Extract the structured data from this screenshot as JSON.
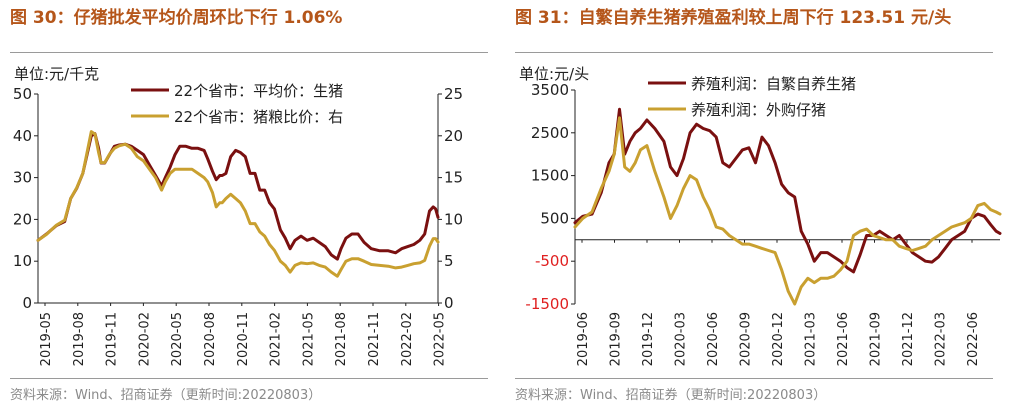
{
  "left": {
    "title": "图 30：仔猪批发平均价周环比下行 1.06%",
    "source": "资料来源：Wind、招商证券（更新时间:20220803）"
  },
  "right": {
    "title": "图 31：自繁自养生猪养殖盈利较上周下行 123.51 元/头",
    "source": "资料来源：Wind、招商证券（更新时间:20220803）"
  },
  "colors": {
    "dark": "#7a1010",
    "gold": "#c9a030",
    "neg": "#e02020"
  },
  "chart_data": [
    {
      "type": "line",
      "title": "图 30：仔猪批发平均价周环比下行 1.06%",
      "ylabel": "单位:元/千克",
      "ylim": [
        0,
        50
      ],
      "y_ticks": [
        "0",
        "10",
        "20",
        "30",
        "40",
        "50"
      ],
      "y2lim": [
        0,
        25
      ],
      "y2_ticks": [
        "0",
        "5",
        "10",
        "15",
        "20",
        "25"
      ],
      "xlim": [
        2019.33,
        2022.63
      ],
      "x_tick_labels": [
        "2019-05",
        "2019-08",
        "2019-11",
        "2020-02",
        "2020-05",
        "2020-08",
        "2020-11",
        "2021-02",
        "2021-05",
        "2021-08",
        "2021-11",
        "2022-02",
        "2022-05"
      ],
      "series": [
        {
          "name": "22个省市：平均价：生猪",
          "axis": "left",
          "x": [
            2019.33,
            2019.4,
            2019.48,
            2019.55,
            2019.6,
            2019.65,
            2019.7,
            2019.77,
            2019.8,
            2019.83,
            2019.85,
            2019.88,
            2019.92,
            2019.96,
            2020.0,
            2020.05,
            2020.1,
            2020.15,
            2020.2,
            2020.25,
            2020.3,
            2020.35,
            2020.38,
            2020.42,
            2020.46,
            2020.5,
            2020.55,
            2020.6,
            2020.65,
            2020.7,
            2020.73,
            2020.77,
            2020.8,
            2020.83,
            2020.85,
            2020.88,
            2020.92,
            2020.96,
            2021.0,
            2021.04,
            2021.08,
            2021.12,
            2021.16,
            2021.2,
            2021.24,
            2021.28,
            2021.33,
            2021.37,
            2021.41,
            2021.45,
            2021.5,
            2021.55,
            2021.6,
            2021.65,
            2021.7,
            2021.75,
            2021.8,
            2021.83,
            2021.87,
            2021.92,
            2021.97,
            2022.02,
            2022.08,
            2022.15,
            2022.22,
            2022.28,
            2022.33,
            2022.38,
            2022.43,
            2022.48,
            2022.52,
            2022.56,
            2022.59,
            2022.61,
            2022.63
          ],
          "values": [
            15,
            16.5,
            18.5,
            19.5,
            25,
            27.5,
            31,
            40,
            40.5,
            37,
            33.5,
            33.5,
            35.5,
            37.5,
            37.8,
            38,
            37.5,
            36.5,
            35.5,
            33,
            30.5,
            28,
            30,
            32.5,
            35.5,
            37.5,
            37.5,
            37,
            37,
            36.5,
            34.5,
            31.5,
            29.5,
            30.5,
            30.5,
            31,
            35,
            36.5,
            36,
            35,
            31,
            31,
            27,
            27,
            24,
            22.5,
            17.5,
            15.5,
            13,
            15,
            16,
            15,
            15.5,
            14.5,
            13.5,
            11.5,
            10.5,
            13,
            15.5,
            16.5,
            16.5,
            14.5,
            13,
            12.5,
            12.5,
            12,
            13,
            13.5,
            14,
            15,
            16.5,
            22,
            23,
            22.5,
            20.5
          ]
        },
        {
          "name": "22个省市：猪粮比价：右",
          "axis": "right",
          "x": [
            2019.33,
            2019.4,
            2019.48,
            2019.55,
            2019.6,
            2019.65,
            2019.7,
            2019.77,
            2019.8,
            2019.83,
            2019.85,
            2019.88,
            2019.92,
            2019.96,
            2020.0,
            2020.05,
            2020.1,
            2020.15,
            2020.2,
            2020.25,
            2020.3,
            2020.35,
            2020.38,
            2020.42,
            2020.46,
            2020.5,
            2020.55,
            2020.6,
            2020.65,
            2020.7,
            2020.73,
            2020.77,
            2020.8,
            2020.83,
            2020.85,
            2020.88,
            2020.92,
            2020.96,
            2021.0,
            2021.04,
            2021.08,
            2021.12,
            2021.16,
            2021.2,
            2021.24,
            2021.28,
            2021.33,
            2021.37,
            2021.41,
            2021.45,
            2021.5,
            2021.55,
            2021.6,
            2021.65,
            2021.7,
            2021.75,
            2021.8,
            2021.83,
            2021.87,
            2021.92,
            2021.97,
            2022.02,
            2022.08,
            2022.15,
            2022.22,
            2022.28,
            2022.33,
            2022.38,
            2022.43,
            2022.48,
            2022.52,
            2022.56,
            2022.59,
            2022.61,
            2022.63
          ],
          "values": [
            7.5,
            8.2,
            9.3,
            9.9,
            12.5,
            13.8,
            15.5,
            20.5,
            20.2,
            18,
            16.8,
            16.8,
            17.8,
            18.5,
            18.8,
            19,
            18.5,
            17.5,
            17,
            16,
            15,
            13.5,
            14.5,
            15.5,
            16,
            16,
            16,
            16,
            15.5,
            15,
            14.5,
            13.2,
            11.5,
            12,
            12,
            12.5,
            13,
            12.5,
            12,
            11,
            9.5,
            9.5,
            8.5,
            8,
            7,
            6.3,
            5,
            4.5,
            3.7,
            4.5,
            4.8,
            4.7,
            4.8,
            4.5,
            4.3,
            3.7,
            3.2,
            4,
            5,
            5.3,
            5.3,
            5,
            4.6,
            4.5,
            4.4,
            4.2,
            4.3,
            4.5,
            4.7,
            4.8,
            5.1,
            6.8,
            7.7,
            7.7,
            7.3
          ]
        }
      ]
    },
    {
      "type": "line",
      "title": "图 31：自繁自养生猪养殖盈利较上周下行 123.51 元/头",
      "ylabel": "单位:元/头",
      "ylim": [
        -1500,
        3500
      ],
      "y_ticks": [
        "-1500",
        "-500",
        "500",
        "1500",
        "2500",
        "3500"
      ],
      "baseline": 0,
      "xlim": [
        2019.42,
        2022.67
      ],
      "x_tick_labels": [
        "2019-06",
        "2019-09",
        "2019-12",
        "2020-03",
        "2020-06",
        "2020-09",
        "2020-12",
        "2021-03",
        "2021-06",
        "2021-09",
        "2021-12",
        "2022-03",
        "2022-06"
      ],
      "series": [
        {
          "name": "养殖利润：自繁自养生猪",
          "x": [
            2019.42,
            2019.48,
            2019.55,
            2019.62,
            2019.68,
            2019.72,
            2019.76,
            2019.8,
            2019.84,
            2019.88,
            2019.92,
            2019.97,
            2020.03,
            2020.1,
            2020.15,
            2020.2,
            2020.25,
            2020.3,
            2020.35,
            2020.4,
            2020.45,
            2020.5,
            2020.55,
            2020.6,
            2020.65,
            2020.7,
            2020.75,
            2020.8,
            2020.85,
            2020.9,
            2020.95,
            2021.0,
            2021.05,
            2021.1,
            2021.15,
            2021.2,
            2021.25,
            2021.3,
            2021.35,
            2021.4,
            2021.45,
            2021.5,
            2021.55,
            2021.6,
            2021.65,
            2021.7,
            2021.75,
            2021.8,
            2021.85,
            2021.9,
            2021.95,
            2022.0,
            2022.05,
            2022.1,
            2022.15,
            2022.2,
            2022.25,
            2022.3,
            2022.35,
            2022.4,
            2022.45,
            2022.5,
            2022.55,
            2022.6,
            2022.64,
            2022.67
          ],
          "values": [
            400,
            550,
            600,
            1100,
            1800,
            2000,
            3050,
            2000,
            2300,
            2500,
            2600,
            2800,
            2600,
            2300,
            1700,
            1500,
            1900,
            2500,
            2700,
            2600,
            2550,
            2400,
            1800,
            1700,
            1900,
            2100,
            2150,
            1800,
            2400,
            2200,
            1800,
            1300,
            1100,
            1000,
            200,
            -100,
            -500,
            -300,
            -300,
            -400,
            -500,
            -650,
            -750,
            -350,
            100,
            100,
            200,
            100,
            0,
            100,
            -100,
            -300,
            -400,
            -500,
            -520,
            -400,
            -200,
            0,
            100,
            200,
            500,
            600,
            550,
            350,
            200,
            150
          ]
        },
        {
          "name": "养殖利润：外购仔猪",
          "x": [
            2019.42,
            2019.48,
            2019.55,
            2019.62,
            2019.68,
            2019.72,
            2019.76,
            2019.8,
            2019.84,
            2019.88,
            2019.92,
            2019.97,
            2020.03,
            2020.1,
            2020.15,
            2020.2,
            2020.25,
            2020.3,
            2020.35,
            2020.4,
            2020.45,
            2020.5,
            2020.55,
            2020.6,
            2020.65,
            2020.7,
            2020.75,
            2020.8,
            2020.85,
            2020.9,
            2020.95,
            2021.0,
            2021.05,
            2021.1,
            2021.15,
            2021.2,
            2021.25,
            2021.3,
            2021.35,
            2021.4,
            2021.45,
            2021.5,
            2021.55,
            2021.6,
            2021.65,
            2021.7,
            2021.75,
            2021.8,
            2021.85,
            2021.9,
            2021.95,
            2022.0,
            2022.05,
            2022.1,
            2022.15,
            2022.2,
            2022.25,
            2022.3,
            2022.35,
            2022.4,
            2022.45,
            2022.5,
            2022.55,
            2022.6,
            2022.64,
            2022.67
          ],
          "values": [
            300,
            500,
            650,
            1200,
            1600,
            2000,
            2850,
            1700,
            1600,
            1800,
            2100,
            2200,
            1600,
            1000,
            500,
            800,
            1200,
            1500,
            1400,
            1000,
            700,
            300,
            250,
            100,
            0,
            -100,
            -100,
            -150,
            -200,
            -250,
            -300,
            -700,
            -1200,
            -1500,
            -1100,
            -900,
            -1000,
            -900,
            -900,
            -850,
            -700,
            -500,
            100,
            200,
            250,
            100,
            50,
            0,
            0,
            -150,
            -200,
            -250,
            -200,
            -150,
            0,
            100,
            200,
            300,
            350,
            400,
            500,
            800,
            850,
            700,
            650,
            600
          ]
        }
      ]
    }
  ]
}
